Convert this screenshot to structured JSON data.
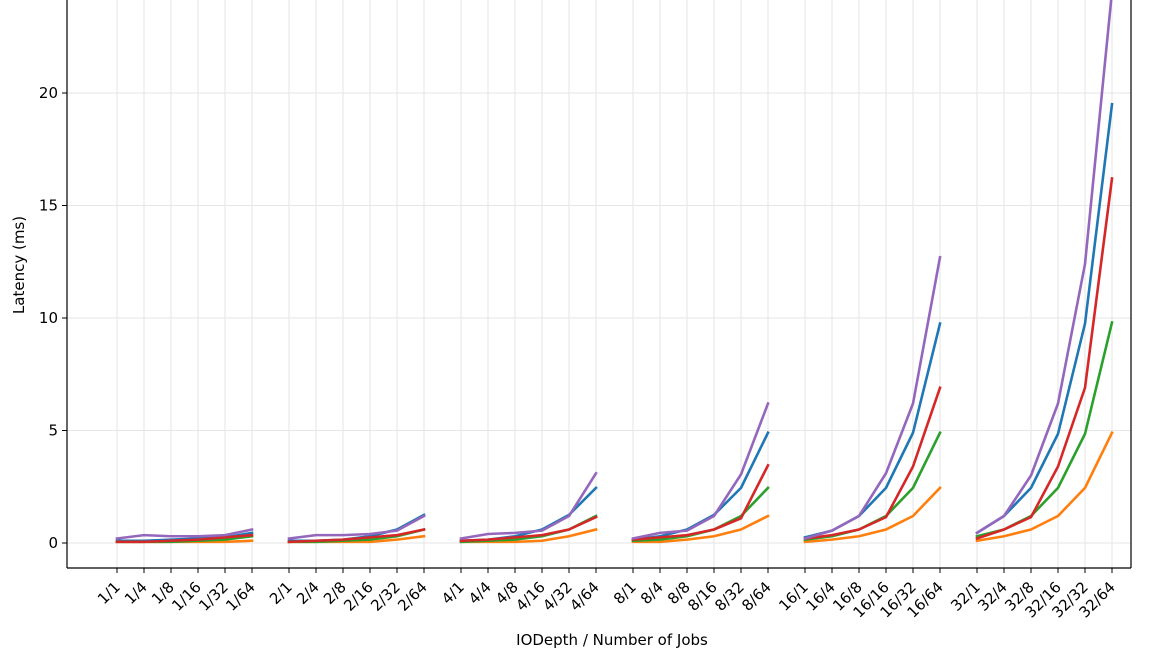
{
  "chart_data": {
    "type": "line",
    "title": "",
    "xlabel": "IODepth / Number of Jobs",
    "ylabel": "Latency (ms)",
    "ylim": [
      -1.1,
      24.5
    ],
    "yticks": [
      0,
      5,
      10,
      15,
      20
    ],
    "grid": true,
    "legend": "none",
    "groups": [
      {
        "categories": [
          "1/1",
          "1/4",
          "1/8",
          "1/16",
          "1/32",
          "1/64"
        ]
      },
      {
        "categories": [
          "2/1",
          "2/4",
          "2/8",
          "2/16",
          "2/32",
          "2/64"
        ]
      },
      {
        "categories": [
          "4/1",
          "4/4",
          "4/8",
          "4/16",
          "4/32",
          "4/64"
        ]
      },
      {
        "categories": [
          "8/1",
          "8/4",
          "8/8",
          "8/16",
          "8/32",
          "8/64"
        ]
      },
      {
        "categories": [
          "16/1",
          "16/4",
          "16/8",
          "16/16",
          "16/32",
          "16/64"
        ]
      },
      {
        "categories": [
          "32/1",
          "32/4",
          "32/8",
          "32/16",
          "32/32",
          "32/64"
        ]
      }
    ],
    "series": [
      {
        "color": "#1f77b4",
        "values": [
          [
            0.1,
            0.1,
            0.15,
            0.2,
            0.25,
            0.45
          ],
          [
            0.1,
            0.1,
            0.15,
            0.3,
            0.6,
            1.25
          ],
          [
            0.1,
            0.15,
            0.3,
            0.6,
            1.25,
            2.45
          ],
          [
            0.15,
            0.3,
            0.6,
            1.25,
            2.45,
            4.9
          ],
          [
            0.25,
            0.55,
            1.2,
            2.45,
            4.9,
            9.75
          ],
          [
            0.45,
            1.2,
            2.45,
            4.85,
            9.75,
            19.5
          ]
        ]
      },
      {
        "color": "#ff7f0e",
        "values": [
          [
            0.05,
            0.05,
            0.05,
            0.05,
            0.05,
            0.1
          ],
          [
            0.05,
            0.05,
            0.05,
            0.05,
            0.15,
            0.3
          ],
          [
            0.05,
            0.05,
            0.05,
            0.1,
            0.3,
            0.6
          ],
          [
            0.05,
            0.05,
            0.15,
            0.3,
            0.6,
            1.2
          ],
          [
            0.05,
            0.15,
            0.3,
            0.6,
            1.2,
            2.45
          ],
          [
            0.1,
            0.3,
            0.6,
            1.2,
            2.45,
            4.9
          ]
        ]
      },
      {
        "color": "#2ca02c",
        "values": [
          [
            0.05,
            0.05,
            0.05,
            0.1,
            0.15,
            0.3
          ],
          [
            0.05,
            0.05,
            0.1,
            0.15,
            0.3,
            0.6
          ],
          [
            0.05,
            0.1,
            0.15,
            0.3,
            0.6,
            1.2
          ],
          [
            0.1,
            0.15,
            0.3,
            0.6,
            1.2,
            2.45
          ],
          [
            0.15,
            0.3,
            0.6,
            1.2,
            2.45,
            4.9
          ],
          [
            0.3,
            0.6,
            1.2,
            2.45,
            4.85,
            9.8
          ]
        ]
      },
      {
        "color": "#d62728",
        "values": [
          [
            0.05,
            0.05,
            0.1,
            0.15,
            0.25,
            0.35
          ],
          [
            0.05,
            0.1,
            0.15,
            0.25,
            0.35,
            0.6
          ],
          [
            0.1,
            0.15,
            0.25,
            0.35,
            0.6,
            1.15
          ],
          [
            0.15,
            0.25,
            0.35,
            0.6,
            1.1,
            3.45
          ],
          [
            0.2,
            0.35,
            0.6,
            1.15,
            3.4,
            6.9
          ],
          [
            0.2,
            0.6,
            1.15,
            3.4,
            6.9,
            16.2
          ]
        ]
      },
      {
        "color": "#9467bd",
        "values": [
          [
            0.2,
            0.35,
            0.3,
            0.3,
            0.35,
            0.6
          ],
          [
            0.2,
            0.35,
            0.35,
            0.4,
            0.55,
            1.2
          ],
          [
            0.2,
            0.4,
            0.45,
            0.55,
            1.2,
            3.1
          ],
          [
            0.2,
            0.45,
            0.55,
            1.2,
            3.05,
            6.2
          ],
          [
            0.2,
            0.55,
            1.2,
            3.1,
            6.2,
            12.7
          ],
          [
            0.45,
            1.2,
            3.0,
            6.2,
            12.4,
            24.5
          ]
        ]
      }
    ]
  }
}
